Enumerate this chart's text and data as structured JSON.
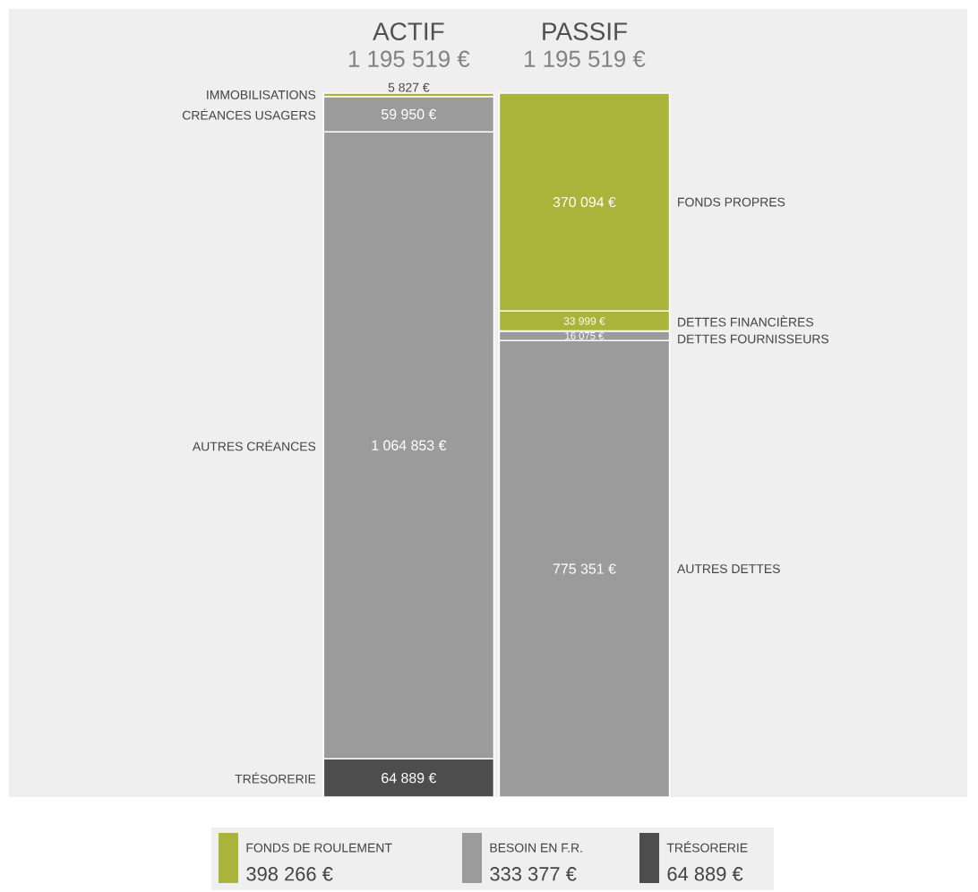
{
  "chart_data": {
    "type": "bar",
    "stacked": true,
    "categories": [
      "ACTIF",
      "PASSIF"
    ],
    "totals": [
      "1 195 519 €",
      "1 195 519 €"
    ],
    "ylim": [
      0,
      1195519
    ],
    "tick_labels": "x",
    "series": [
      {
        "name": "TRÉSORERIE",
        "color": "#4d4d4d",
        "values": [
          64889,
          null
        ],
        "value_labels": [
          "64 889 €",
          null
        ]
      },
      {
        "name": "AUTRES CRÉANCES",
        "color": "#9b9b9b",
        "values": [
          1064853,
          null
        ],
        "value_labels": [
          "1 064 853 €",
          null
        ]
      },
      {
        "name": "CRÉANCES USAGERS",
        "color": "#9b9b9b",
        "values": [
          59950,
          null
        ],
        "value_labels": [
          "59 950 €",
          null
        ]
      },
      {
        "name": "IMMOBILISATIONS",
        "color": "#abb43a",
        "values": [
          5827,
          null
        ],
        "value_labels": [
          "5 827 €",
          null
        ]
      },
      {
        "name": "AUTRES DETTES",
        "color": "#9b9b9b",
        "values": [
          null,
          775351
        ],
        "value_labels": [
          null,
          "775 351 €"
        ]
      },
      {
        "name": "DETTES FOURNISSEURS",
        "color": "#9b9b9b",
        "values": [
          null,
          16075
        ],
        "value_labels": [
          null,
          "16 075 €"
        ]
      },
      {
        "name": "DETTES FINANCIÈRES",
        "color": "#abb43a",
        "values": [
          null,
          33999
        ],
        "value_labels": [
          null,
          "33 999 €"
        ]
      },
      {
        "name": "FONDS PROPRES",
        "color": "#abb43a",
        "values": [
          null,
          370094
        ],
        "value_labels": [
          null,
          "370 094 €"
        ]
      }
    ],
    "annotations": [
      "FONDS DE ROULEMENT",
      "398 266 €",
      "BESOIN EN F.R.",
      "333 377 €",
      "TRÉSORERIE",
      "64 889 €"
    ]
  }
}
